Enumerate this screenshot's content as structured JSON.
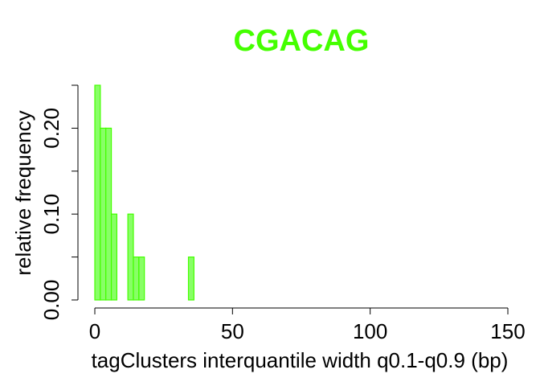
{
  "chart_data": {
    "type": "bar",
    "title": "CGACAG",
    "title_color": "#44ff00",
    "bar_fill": "#88ff66",
    "bar_stroke": "#44ff00",
    "xlabel": "tagClusters interquantile width q0.1-q0.9 (bp)",
    "ylabel": "relative frequency",
    "xlim": [
      0,
      150
    ],
    "ylim": [
      0,
      0.25
    ],
    "x_ticks": [
      0,
      50,
      100,
      150
    ],
    "y_ticks": [
      0.0,
      0.05,
      0.1,
      0.15,
      0.2,
      0.25
    ],
    "y_tick_labels": [
      {
        "value": 0.0,
        "label": "0.00"
      },
      {
        "value": 0.1,
        "label": "0.10"
      },
      {
        "value": 0.2,
        "label": "0.20"
      }
    ],
    "bins": [
      {
        "x0": 0,
        "x1": 2,
        "value": 0.25
      },
      {
        "x0": 2,
        "x1": 4,
        "value": 0.2
      },
      {
        "x0": 4,
        "x1": 6,
        "value": 0.2
      },
      {
        "x0": 6,
        "x1": 8,
        "value": 0.1
      },
      {
        "x0": 8,
        "x1": 10,
        "value": 0.0
      },
      {
        "x0": 10,
        "x1": 12,
        "value": 0.0
      },
      {
        "x0": 12,
        "x1": 14,
        "value": 0.1
      },
      {
        "x0": 14,
        "x1": 16,
        "value": 0.05
      },
      {
        "x0": 16,
        "x1": 18,
        "value": 0.05
      },
      {
        "x0": 18,
        "x1": 20,
        "value": 0.0
      },
      {
        "x0": 20,
        "x1": 22,
        "value": 0.0
      },
      {
        "x0": 22,
        "x1": 24,
        "value": 0.0
      },
      {
        "x0": 24,
        "x1": 26,
        "value": 0.0
      },
      {
        "x0": 26,
        "x1": 28,
        "value": 0.0
      },
      {
        "x0": 28,
        "x1": 30,
        "value": 0.0
      },
      {
        "x0": 30,
        "x1": 32,
        "value": 0.0
      },
      {
        "x0": 32,
        "x1": 34,
        "value": 0.0
      },
      {
        "x0": 34,
        "x1": 36,
        "value": 0.05
      }
    ]
  }
}
